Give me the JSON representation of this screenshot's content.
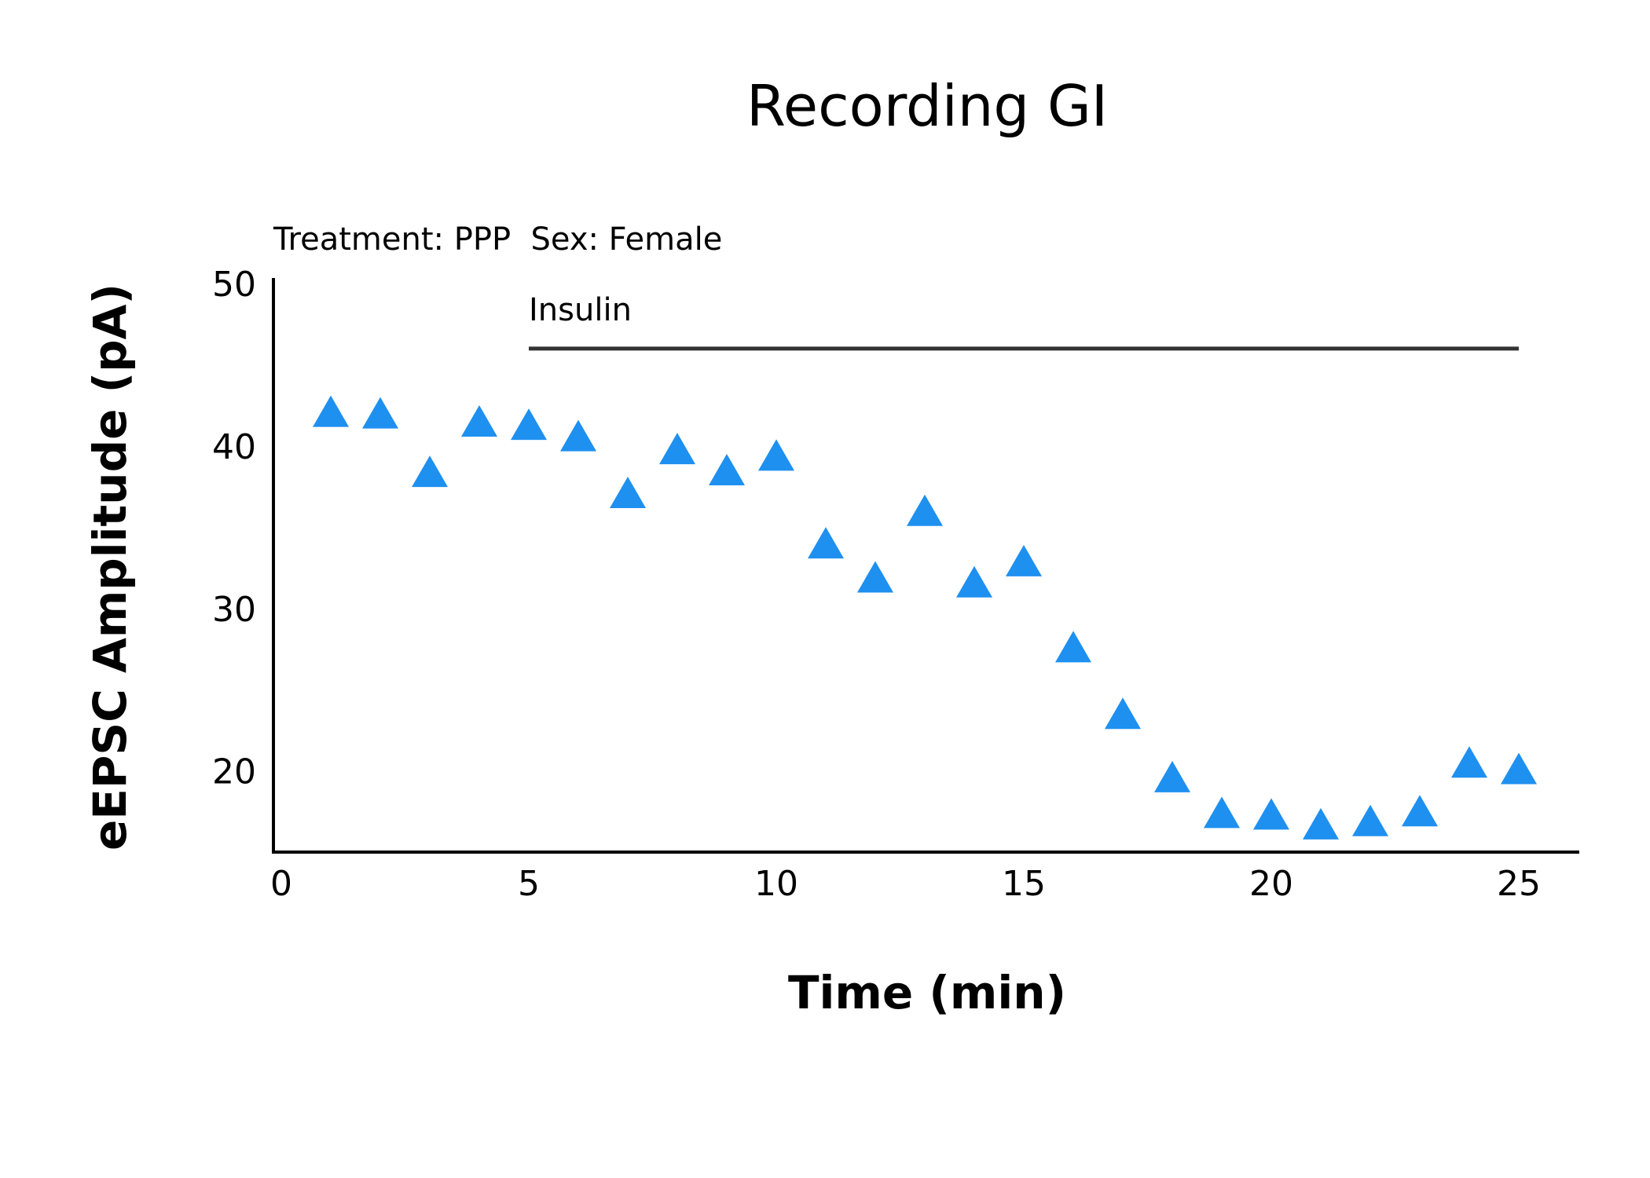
{
  "chart_data": {
    "type": "scatter",
    "title": "Recording GI",
    "subtitle": "Treatment: PPP  Sex: Female",
    "xlabel": "Time (min)",
    "ylabel": "eEPSC Amplitude (pA)",
    "xlim": [
      0,
      26
    ],
    "ylim": [
      15,
      50
    ],
    "xticks": [
      0,
      5,
      10,
      15,
      20,
      25
    ],
    "yticks": [
      20,
      30,
      40,
      50
    ],
    "marker": "triangle",
    "marker_color": "#1E90F0",
    "grid": false,
    "annotation": {
      "label": "Insulin",
      "x_start": 5,
      "x_end": 25,
      "y": 46,
      "color": "#333333"
    },
    "series": [
      {
        "x": [
          1,
          2,
          3,
          4,
          5,
          6,
          7,
          8,
          9,
          10,
          11,
          12,
          13,
          14,
          15,
          16,
          17,
          18,
          19,
          20,
          21,
          22,
          23,
          24,
          25
        ],
        "y": [
          42.1,
          42.0,
          38.4,
          41.5,
          41.3,
          40.6,
          37.1,
          39.8,
          38.5,
          39.4,
          34.0,
          31.9,
          36.0,
          31.6,
          32.9,
          27.6,
          23.5,
          19.6,
          17.4,
          17.3,
          16.7,
          16.9,
          17.5,
          20.5,
          20.1
        ]
      }
    ]
  }
}
